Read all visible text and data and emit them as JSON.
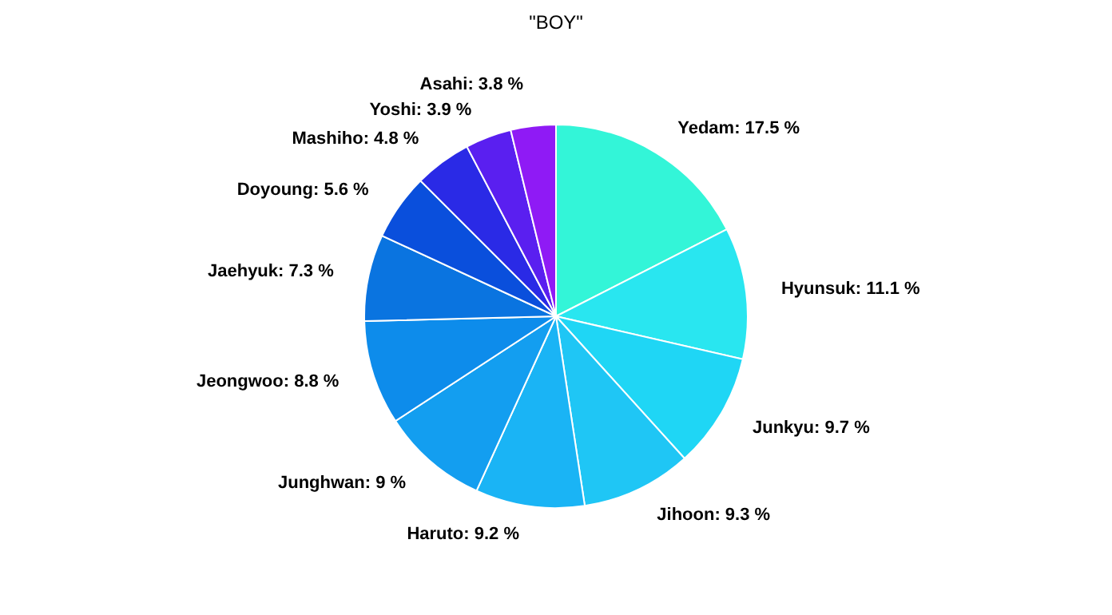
{
  "chart_data": {
    "type": "pie",
    "title": "\"BOY\"",
    "categories": [
      "Yedam",
      "Hyunsuk",
      "Junkyu",
      "Jihoon",
      "Haruto",
      "Junghwan",
      "Jeongwoo",
      "Jaehyuk",
      "Doyoung",
      "Mashiho",
      "Yoshi",
      "Asahi"
    ],
    "values": [
      17.5,
      11.1,
      9.7,
      9.3,
      9.2,
      9,
      8.8,
      7.3,
      5.6,
      4.8,
      3.9,
      3.8
    ],
    "value_labels": [
      "17.5 %",
      "11.1 %",
      "9.7 %",
      "9.3 %",
      "9.2 %",
      "9 %",
      "8.8 %",
      "7.3 %",
      "5.6 %",
      "4.8 %",
      "3.9 %",
      "3.8 %"
    ],
    "colors": [
      "#33f5d8",
      "#29e6f0",
      "#1fd6f5",
      "#1fc6f5",
      "#1ab4f5",
      "#139ef0",
      "#0d8ceb",
      "#0a74e0",
      "#0a4fdc",
      "#2a2ae6",
      "#5a1ff0",
      "#8f1af5"
    ],
    "legend": false
  }
}
